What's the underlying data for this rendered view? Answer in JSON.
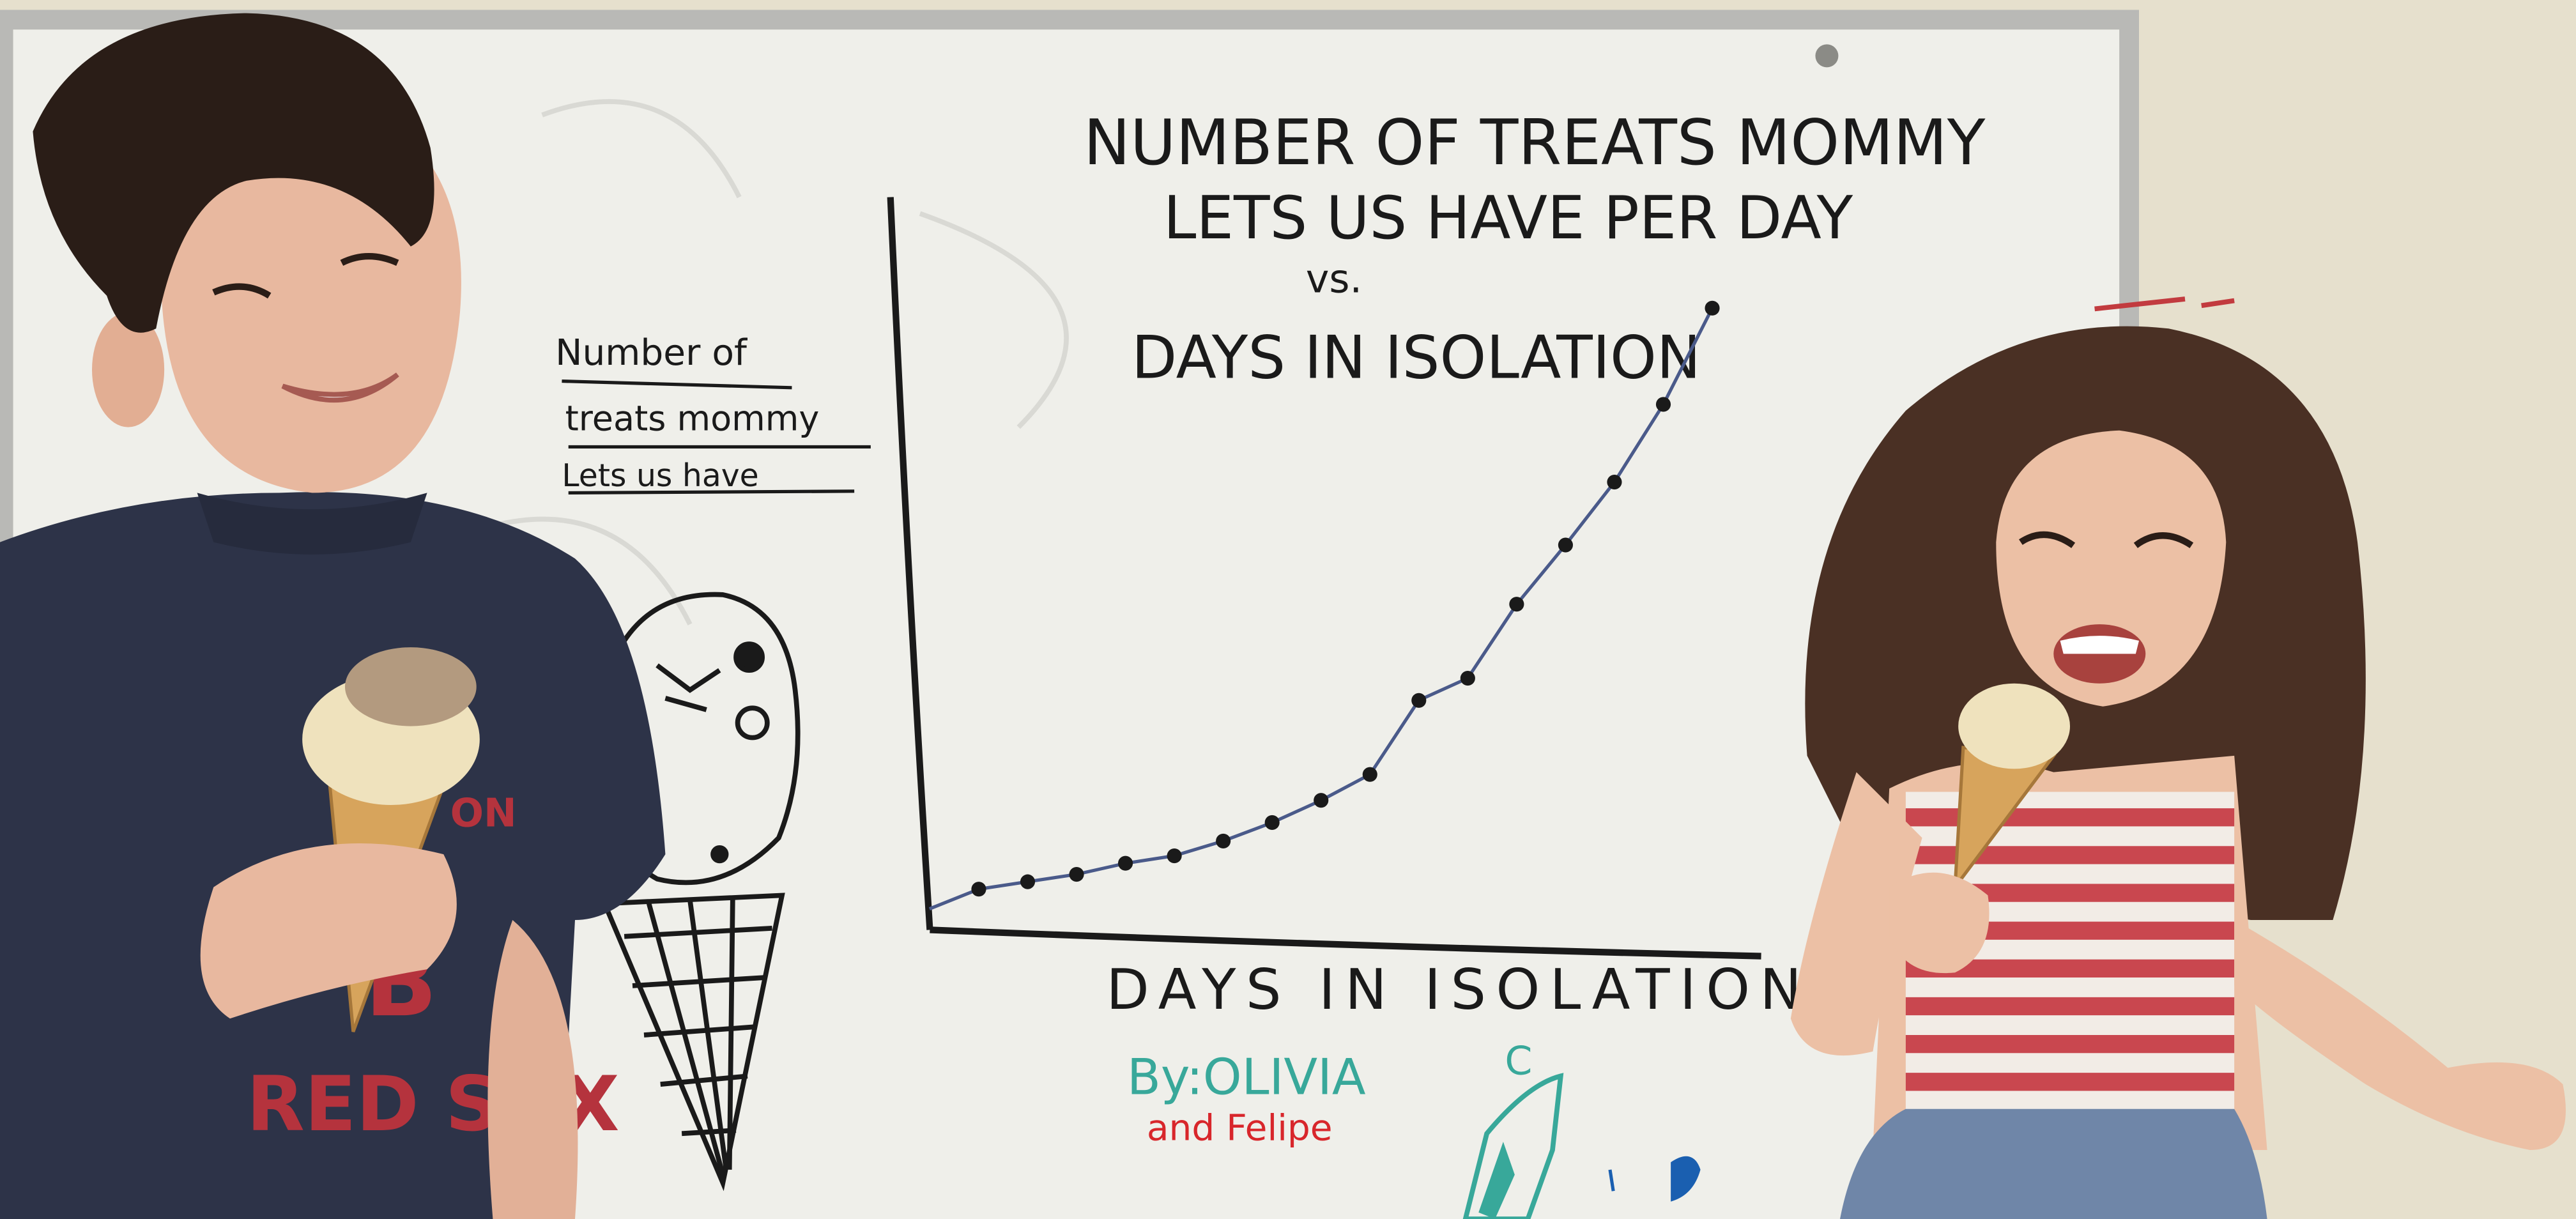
{
  "board": {
    "title_line1": "NUMBER OF TREATS MOMMY",
    "title_line2": "LETS US HAVE PER DAY",
    "title_vs": "vs.",
    "title_line3": "DAYS IN ISOLATION",
    "ylabel_line1": "Number of",
    "ylabel_line2": "treats mommy",
    "ylabel_line3": "Lets us have",
    "xlabel": "DAYS IN ISOLATION",
    "credit_by": "By:OLIVIA",
    "credit_initial": "C",
    "credit_and": "and Felipe"
  },
  "shirt": {
    "text_top": "ON",
    "logo_letter": "B",
    "text_bottom": "RED SOX"
  },
  "colors": {
    "wall": "#e6e0cd",
    "board": "#efefea",
    "frame": "#b8b8b8",
    "marker_black": "#1a1a1a",
    "marker_teal": "#38a89a",
    "marker_red": "#d8262b",
    "marker_blue": "#1a5fb0",
    "shirt_navy": "#2d3348",
    "dress_stripe": "#c9474f",
    "skirt_blue": "#6f86a8"
  },
  "chart_data": {
    "type": "scatter",
    "title": "NUMBER OF TREATS MOMMY LETS US HAVE PER DAY vs. DAYS IN ISOLATION",
    "xlabel": "DAYS IN ISOLATION",
    "ylabel": "Number of treats mommy Lets us have",
    "trend": "exponential",
    "grid": false,
    "x": [
      1,
      2,
      3,
      4,
      5,
      6,
      7,
      8,
      9,
      10,
      11,
      12,
      13,
      14,
      15,
      16
    ],
    "y": [
      0.3,
      0.5,
      0.7,
      1.0,
      1.2,
      1.6,
      2.1,
      2.7,
      3.4,
      5.4,
      6.0,
      8.0,
      9.6,
      11.3,
      13.4,
      16.0
    ],
    "xlim": [
      0,
      17
    ],
    "ylim": [
      -0.8,
      19
    ]
  }
}
